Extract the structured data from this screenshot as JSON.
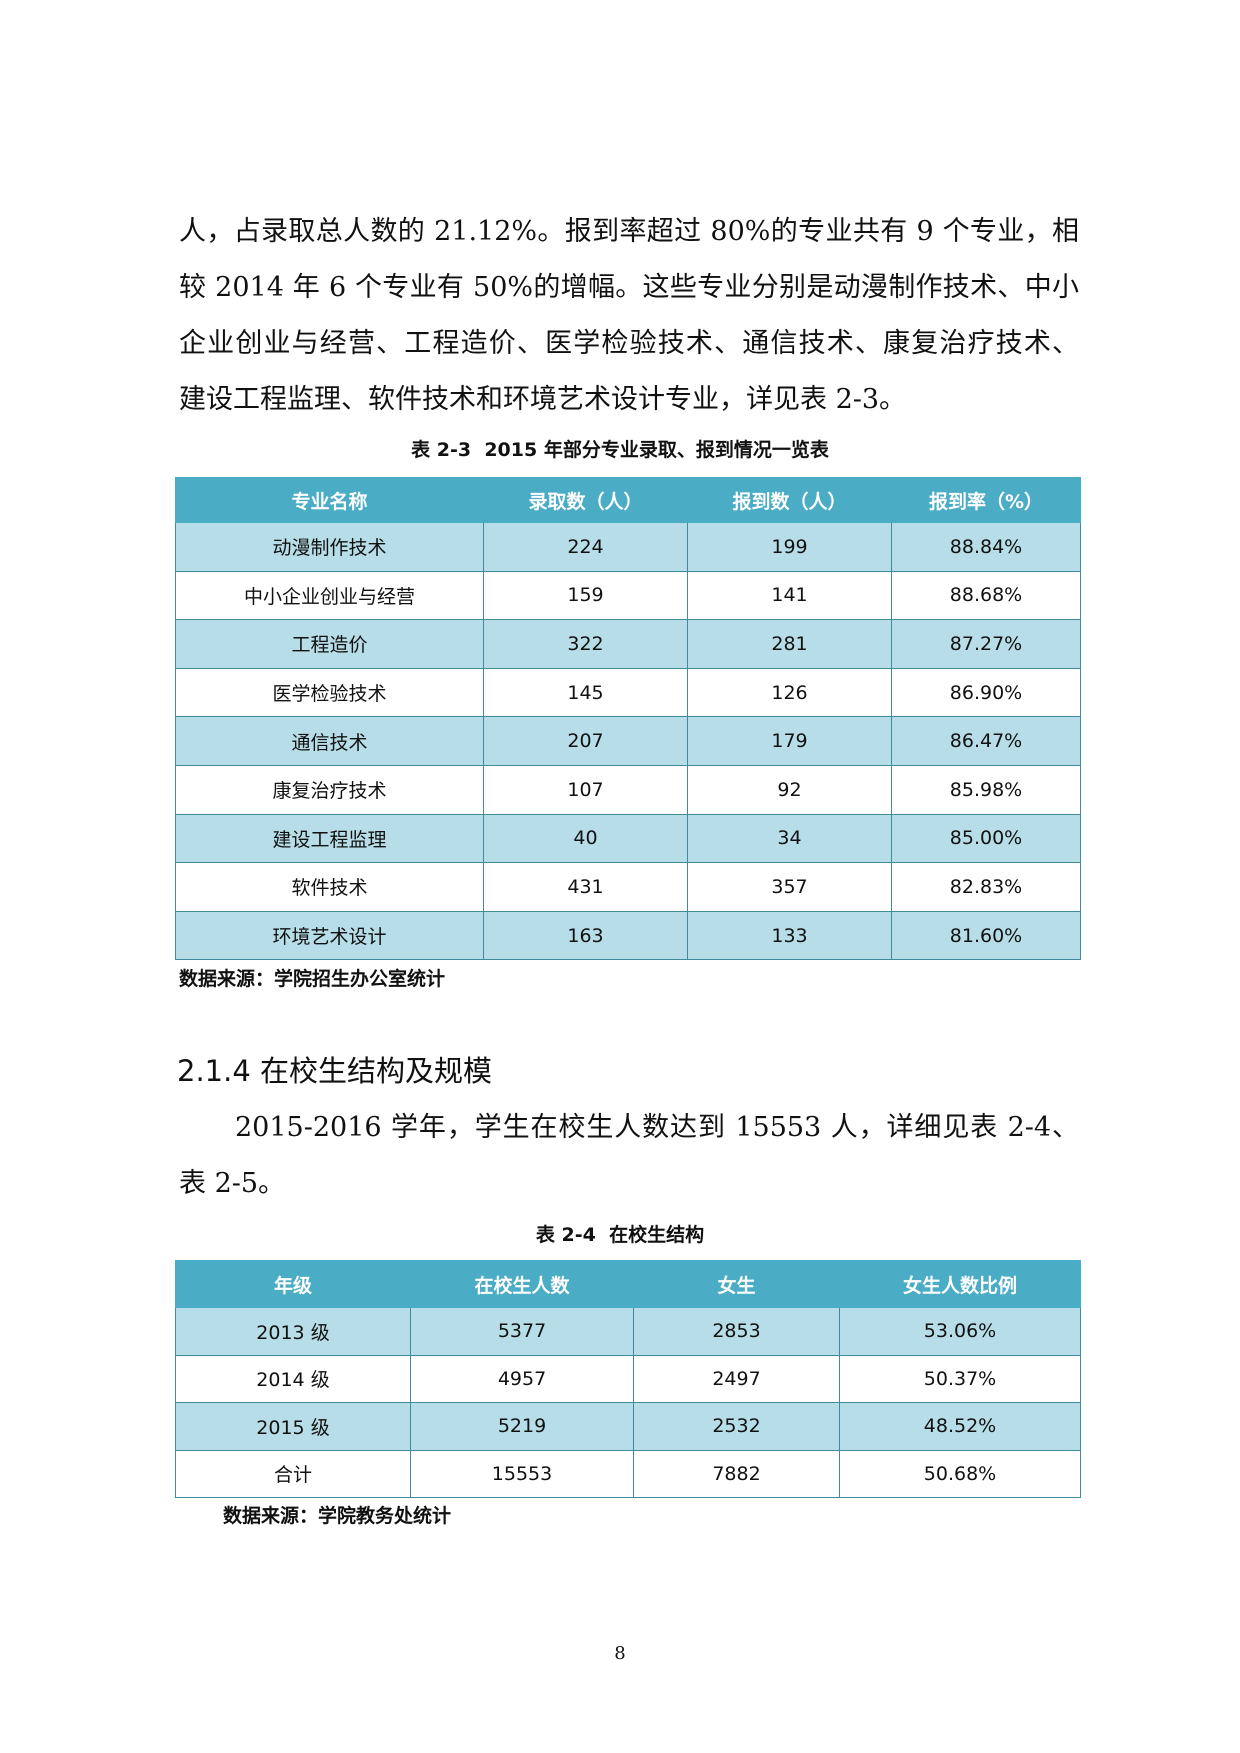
{
  "body_paragraph": {
    "lines": [
      "人，占录取总人数的 21.12%。报到率超过 80%的专业共有 9 个专业，相",
      "较 2014 年 6 个专业有 50%的增幅。这些专业分别是动漫制作技术、中小",
      "企业创业与经营、工程造价、医学检验技术、通信技术、康复治疗技术、",
      "建设工程监理、软件技术和环境艺术设计专业，详见表 2-3。"
    ]
  },
  "table_1": {
    "caption": "表 2-3  2015 年部分专业录取、报到情况一览表",
    "header": [
      "专业名称",
      "录取数（人）",
      "报到数（人）",
      "报到率（%）"
    ],
    "rows": [
      [
        "动漫制作技术",
        "224",
        "199",
        "88.84%"
      ],
      [
        "中小企业创业与经营",
        "159",
        "141",
        "88.68%"
      ],
      [
        "工程造价",
        "322",
        "281",
        "87.27%"
      ],
      [
        "医学检验技术",
        "145",
        "126",
        "86.90%"
      ],
      [
        "通信技术",
        "207",
        "179",
        "86.47%"
      ],
      [
        "康复治疗技术",
        "107",
        "92",
        "85.98%"
      ],
      [
        "建设工程监理",
        "40",
        "34",
        "85.00%"
      ],
      [
        "软件技术",
        "431",
        "357",
        "82.83%"
      ],
      [
        "环境艺术设计",
        "163",
        "133",
        "81.60%"
      ]
    ],
    "source": "数据来源：学院招生办公室统计"
  },
  "section": {
    "heading": "2.1.4 在校生结构及规模",
    "lines": [
      "2015-2016 学年，学生在校生人数达到 15553 人，详细见表 2-4、",
      "表 2-5。"
    ]
  },
  "table_2": {
    "caption": "表 2-4  在校生结构",
    "header": [
      "年级",
      "在校生人数",
      "女生",
      "女生人数比例"
    ],
    "rows": [
      [
        "2013 级",
        "5377",
        "2853",
        "53.06%"
      ],
      [
        "2014 级",
        "4957",
        "2497",
        "50.37%"
      ],
      [
        "2015 级",
        "5219",
        "2532",
        "48.52%"
      ],
      [
        "合计",
        "15553",
        "7882",
        "50.68%"
      ]
    ],
    "source": "数据来源：学院教务处统计"
  },
  "page_number": "8"
}
